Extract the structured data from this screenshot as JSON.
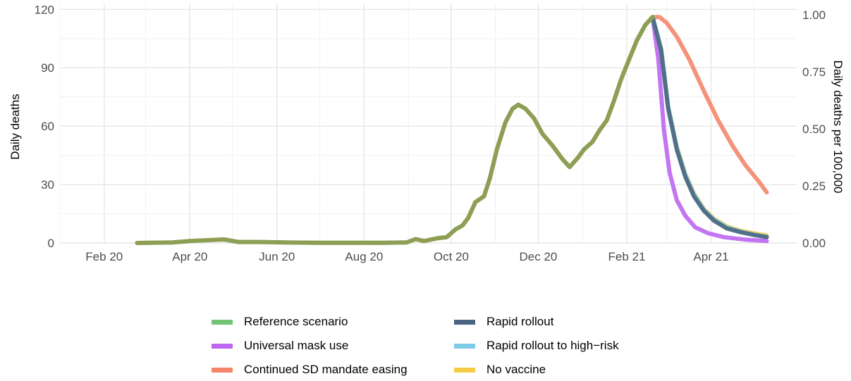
{
  "chart_data": {
    "type": "line",
    "title": "",
    "ylabel": "Daily deaths",
    "ylabel_right": "Daily deaths per 100,000",
    "xlim": [
      "2020-01-01",
      "2021-05-31"
    ],
    "ylim": [
      0,
      120
    ],
    "ylim_right": [
      0,
      1.05
    ],
    "grid": true,
    "legend_position": "bottom",
    "x_ticks": [
      {
        "date": "2020-02-01",
        "label": "Feb 20"
      },
      {
        "date": "2020-04-01",
        "label": "Apr 20"
      },
      {
        "date": "2020-06-01",
        "label": "Jun 20"
      },
      {
        "date": "2020-08-01",
        "label": "Aug 20"
      },
      {
        "date": "2020-10-01",
        "label": "Oct 20"
      },
      {
        "date": "2020-12-01",
        "label": "Dec 20"
      },
      {
        "date": "2021-02-01",
        "label": "Feb 21"
      },
      {
        "date": "2021-04-01",
        "label": "Apr 21"
      }
    ],
    "y_ticks": [
      {
        "value": 0,
        "label": "0"
      },
      {
        "value": 30,
        "label": "30"
      },
      {
        "value": 60,
        "label": "60"
      },
      {
        "value": 90,
        "label": "90"
      },
      {
        "value": 120,
        "label": "120"
      }
    ],
    "y_ticks_right": [
      {
        "value": 0,
        "label": "0.00"
      },
      {
        "value": 0.25,
        "label": "0.25"
      },
      {
        "value": 0.5,
        "label": "0.50"
      },
      {
        "value": 0.75,
        "label": "0.75"
      },
      {
        "value": 1.0,
        "label": "1.00"
      }
    ],
    "series": [
      {
        "name": "Reference scenario",
        "color": "#74c476",
        "points": [
          [
            "2020-02-24",
            0
          ],
          [
            "2020-03-20",
            0.3
          ],
          [
            "2020-04-01",
            1
          ],
          [
            "2020-04-15",
            1.5
          ],
          [
            "2020-04-25",
            1.8
          ],
          [
            "2020-05-05",
            0.5
          ],
          [
            "2020-05-20",
            0.5
          ],
          [
            "2020-06-10",
            0.2
          ],
          [
            "2020-07-01",
            0.1
          ],
          [
            "2020-08-15",
            0.1
          ],
          [
            "2020-08-31",
            0.3
          ],
          [
            "2020-09-06",
            2
          ],
          [
            "2020-09-12",
            1
          ],
          [
            "2020-09-22",
            2.5
          ],
          [
            "2020-09-28",
            3
          ],
          [
            "2020-10-04",
            7
          ],
          [
            "2020-10-09",
            9
          ],
          [
            "2020-10-13",
            13
          ],
          [
            "2020-10-18",
            21
          ],
          [
            "2020-10-24",
            24
          ],
          [
            "2020-10-28",
            33
          ],
          [
            "2020-11-02",
            48
          ],
          [
            "2020-11-08",
            62
          ],
          [
            "2020-11-13",
            69
          ],
          [
            "2020-11-17",
            71
          ],
          [
            "2020-11-22",
            69
          ],
          [
            "2020-11-28",
            64
          ],
          [
            "2020-12-04",
            56
          ],
          [
            "2020-12-11",
            50
          ],
          [
            "2020-12-18",
            43
          ],
          [
            "2020-12-23",
            39
          ],
          [
            "2020-12-29",
            44
          ],
          [
            "2021-01-02",
            48
          ],
          [
            "2021-01-08",
            52
          ],
          [
            "2021-01-13",
            58
          ],
          [
            "2021-01-18",
            63
          ],
          [
            "2021-01-23",
            73
          ],
          [
            "2021-01-28",
            84
          ],
          [
            "2021-02-03",
            95
          ],
          [
            "2021-02-08",
            104
          ],
          [
            "2021-02-14",
            112
          ],
          [
            "2021-02-19",
            116
          ],
          [
            "2021-02-25",
            100
          ],
          [
            "2021-03-02",
            70
          ],
          [
            "2021-03-08",
            49
          ],
          [
            "2021-03-14",
            35
          ],
          [
            "2021-03-20",
            25
          ],
          [
            "2021-03-27",
            17
          ],
          [
            "2021-04-03",
            12
          ],
          [
            "2021-04-12",
            8
          ],
          [
            "2021-04-22",
            6
          ],
          [
            "2021-05-02",
            4.5
          ],
          [
            "2021-05-10",
            3.5
          ]
        ]
      },
      {
        "name": "Universal mask use",
        "color": "#be66f0",
        "points": [
          [
            "2021-02-19",
            116
          ],
          [
            "2021-02-23",
            95
          ],
          [
            "2021-02-27",
            58
          ],
          [
            "2021-03-03",
            36
          ],
          [
            "2021-03-08",
            22
          ],
          [
            "2021-03-14",
            14
          ],
          [
            "2021-03-21",
            8
          ],
          [
            "2021-03-30",
            5
          ],
          [
            "2021-04-10",
            3
          ],
          [
            "2021-04-25",
            1.7
          ],
          [
            "2021-05-10",
            1
          ]
        ]
      },
      {
        "name": "Continued SD mandate easing",
        "color": "#f4876b",
        "points": [
          [
            "2021-02-19",
            116
          ],
          [
            "2021-02-24",
            116
          ],
          [
            "2021-03-01",
            113
          ],
          [
            "2021-03-08",
            106
          ],
          [
            "2021-03-17",
            94
          ],
          [
            "2021-03-27",
            78
          ],
          [
            "2021-04-06",
            63
          ],
          [
            "2021-04-16",
            50
          ],
          [
            "2021-04-25",
            40
          ],
          [
            "2021-05-04",
            32
          ],
          [
            "2021-05-10",
            26
          ]
        ]
      },
      {
        "name": "Rapid rollout",
        "color": "#4a6580",
        "points": [
          [
            "2021-02-19",
            116
          ],
          [
            "2021-02-25",
            99
          ],
          [
            "2021-03-02",
            69
          ],
          [
            "2021-03-08",
            48
          ],
          [
            "2021-03-14",
            34
          ],
          [
            "2021-03-20",
            24
          ],
          [
            "2021-03-27",
            16.5
          ],
          [
            "2021-04-03",
            11.5
          ],
          [
            "2021-04-12",
            7.5
          ],
          [
            "2021-04-22",
            5.5
          ],
          [
            "2021-05-02",
            4
          ],
          [
            "2021-05-10",
            3
          ]
        ]
      },
      {
        "name": "Rapid rollout to high−risk",
        "color": "#7ecbe8",
        "points": [
          [
            "2021-02-19",
            116
          ],
          [
            "2021-02-25",
            100
          ],
          [
            "2021-03-02",
            70
          ],
          [
            "2021-03-08",
            49
          ],
          [
            "2021-03-14",
            35
          ],
          [
            "2021-03-20",
            25
          ],
          [
            "2021-03-27",
            17
          ],
          [
            "2021-04-03",
            12
          ],
          [
            "2021-04-12",
            8
          ],
          [
            "2021-04-22",
            5.8
          ],
          [
            "2021-05-02",
            4.2
          ],
          [
            "2021-05-10",
            3.2
          ]
        ]
      },
      {
        "name": "No vaccine",
        "color": "#f6cc47",
        "points": [
          [
            "2021-02-19",
            116
          ],
          [
            "2021-02-25",
            100
          ],
          [
            "2021-03-02",
            70
          ],
          [
            "2021-03-08",
            49.5
          ],
          [
            "2021-03-14",
            35.5
          ],
          [
            "2021-03-20",
            25.5
          ],
          [
            "2021-03-27",
            17.5
          ],
          [
            "2021-04-03",
            12.5
          ],
          [
            "2021-04-12",
            8.5
          ],
          [
            "2021-04-22",
            6.2
          ],
          [
            "2021-05-02",
            4.8
          ],
          [
            "2021-05-10",
            3.8
          ]
        ]
      }
    ],
    "overlay_color": "#8f9e55"
  }
}
